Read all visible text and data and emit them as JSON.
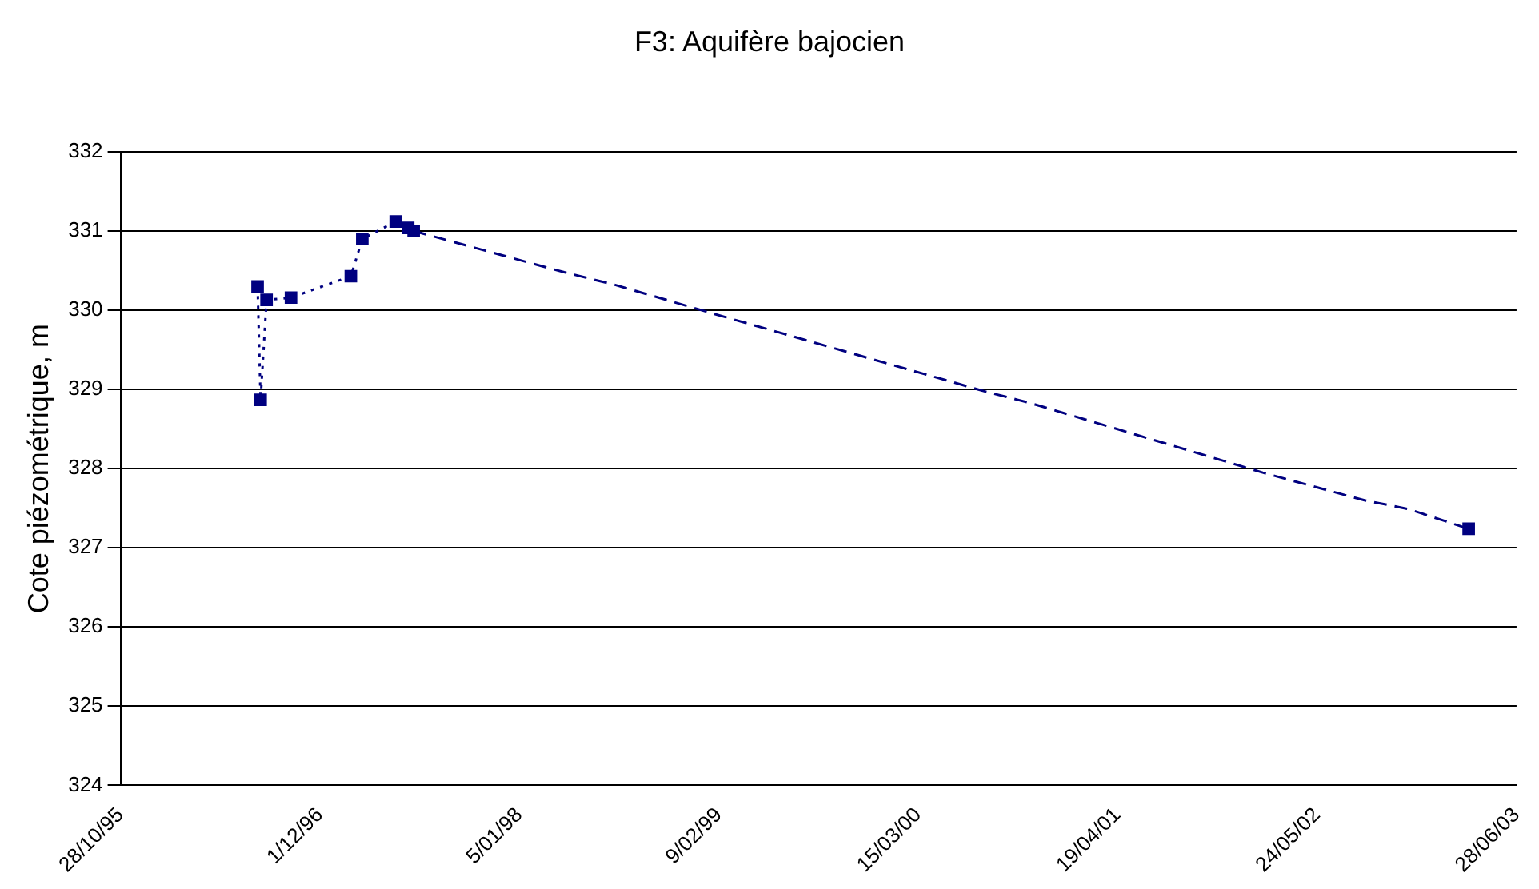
{
  "chart_data": {
    "type": "line",
    "title": "F3: Aquifère bajocien",
    "ylabel": "Cote piézométrique, m",
    "xlim": [
      "1995-10-28",
      "2003-06-28"
    ],
    "xticks": [
      {
        "value": "1995-10-28",
        "label": "28/10/95"
      },
      {
        "value": "1996-12-01",
        "label": "1/12/96"
      },
      {
        "value": "1998-01-05",
        "label": "5/01/98"
      },
      {
        "value": "1999-02-09",
        "label": "9/02/99"
      },
      {
        "value": "2000-03-15",
        "label": "15/03/00"
      },
      {
        "value": "2001-04-19",
        "label": "19/04/01"
      },
      {
        "value": "2002-05-24",
        "label": "24/05/02"
      },
      {
        "value": "2003-06-28",
        "label": "28/06/03"
      }
    ],
    "ylim": [
      324,
      332
    ],
    "yticks": [
      324,
      325,
      326,
      327,
      328,
      329,
      330,
      331,
      332
    ],
    "grid": "y",
    "legend": false,
    "series": [
      {
        "color": "#000080",
        "marker": "square",
        "line_style": "dotted",
        "x": [
          "1996-07-29",
          "1996-08-04",
          "1996-08-16",
          "1996-10-04",
          "1997-02-01",
          "1997-02-24",
          "1997-05-02",
          "1997-05-27",
          "1997-06-07"
        ],
        "values": [
          330.3,
          328.87,
          330.13,
          330.16,
          330.43,
          330.9,
          331.12,
          331.04,
          331.0
        ]
      },
      {
        "color": "#000080",
        "marker": "none",
        "line_style": "dashed",
        "x": [
          "1997-06-07",
          "1998-04-05",
          "1998-07-16",
          "1999-01-22",
          "2000-07-30",
          "2000-10-25",
          "2002-02-04",
          "2002-08-27",
          "2002-11-23",
          "2003-03-24"
        ],
        "values": [
          331.0,
          330.48,
          330.32,
          329.97,
          328.97,
          328.83,
          327.95,
          327.6,
          327.49,
          327.24
        ]
      },
      {
        "color": "#000080",
        "marker": "square",
        "x": [
          "2003-03-24"
        ],
        "values": [
          327.24
        ]
      }
    ]
  }
}
